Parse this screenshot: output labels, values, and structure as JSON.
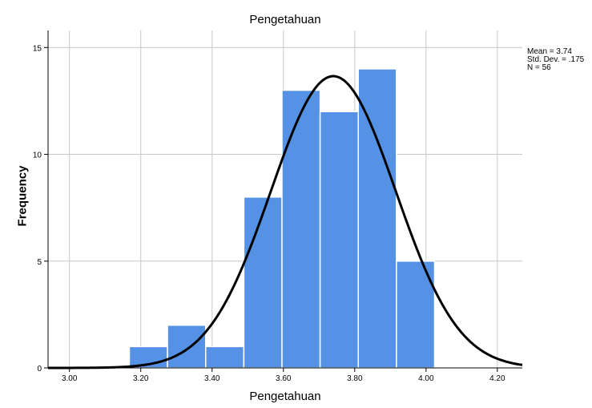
{
  "chart_data": {
    "type": "bar",
    "title": "Pengetahuan",
    "xlabel": "Pengetahuan",
    "ylabel": "Frequency",
    "x_ticks": [
      "3.00",
      "3.20",
      "3.40",
      "3.60",
      "3.80",
      "4.00",
      "4.20"
    ],
    "x_tick_values": [
      3.0,
      3.2,
      3.4,
      3.6,
      3.8,
      4.0,
      4.2
    ],
    "y_ticks": [
      0,
      5,
      10,
      15
    ],
    "xlim": [
      2.94,
      4.27
    ],
    "ylim": [
      0,
      15.8
    ],
    "grid": true,
    "bin_width": 0.107,
    "bins": [
      {
        "x0": 3.168,
        "x1": 3.275,
        "value": 1
      },
      {
        "x0": 3.275,
        "x1": 3.382,
        "value": 2
      },
      {
        "x0": 3.382,
        "x1": 3.489,
        "value": 1
      },
      {
        "x0": 3.489,
        "x1": 3.596,
        "value": 8
      },
      {
        "x0": 3.596,
        "x1": 3.703,
        "value": 13
      },
      {
        "x0": 3.703,
        "x1": 3.81,
        "value": 12
      },
      {
        "x0": 3.81,
        "x1": 3.917,
        "value": 14
      },
      {
        "x0": 3.917,
        "x1": 4.024,
        "value": 5
      }
    ],
    "normal_curve": {
      "mean": 3.74,
      "sd": 0.175,
      "n": 56
    },
    "colors": {
      "bar": "#5592e5",
      "bar_edge": "#ffffff",
      "curve": "#000000",
      "grid": "#c8c8c8",
      "axis": "#000000"
    },
    "stats": {
      "mean": "Mean = 3.74",
      "sd": "Std. Dev. = .175",
      "n": "N = 56"
    }
  }
}
